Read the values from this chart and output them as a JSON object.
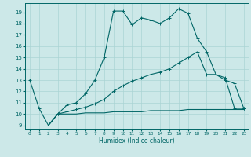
{
  "xlabel": "Humidex (Indice chaleur)",
  "bg_color": "#cce8e8",
  "grid_color": "#aad4d4",
  "line_color": "#006666",
  "xlim": [
    -0.5,
    23.5
  ],
  "ylim": [
    8.7,
    19.8
  ],
  "yticks": [
    9,
    10,
    11,
    12,
    13,
    14,
    15,
    16,
    17,
    18,
    19
  ],
  "xticks": [
    0,
    1,
    2,
    3,
    4,
    5,
    6,
    7,
    8,
    9,
    10,
    11,
    12,
    13,
    14,
    15,
    16,
    17,
    18,
    19,
    20,
    21,
    22,
    23
  ],
  "series1_x": [
    0,
    1,
    2,
    3,
    4,
    5,
    6,
    7,
    8,
    9,
    10,
    11,
    12,
    13,
    14,
    15,
    16,
    17,
    18,
    19,
    20,
    21,
    22,
    23
  ],
  "series1_y": [
    13.0,
    10.5,
    9.0,
    10.0,
    10.8,
    11.0,
    11.8,
    13.0,
    15.0,
    19.1,
    19.1,
    17.9,
    18.5,
    18.3,
    18.0,
    18.5,
    19.3,
    18.9,
    16.7,
    15.5,
    13.5,
    13.0,
    12.7,
    10.5
  ],
  "series2_x": [
    2,
    3,
    4,
    5,
    6,
    7,
    8,
    9,
    10,
    11,
    12,
    13,
    14,
    15,
    16,
    17,
    18,
    19,
    20,
    21,
    22,
    23
  ],
  "series2_y": [
    9.0,
    10.0,
    10.2,
    10.4,
    10.6,
    10.9,
    11.3,
    12.0,
    12.5,
    12.9,
    13.2,
    13.5,
    13.7,
    14.0,
    14.5,
    15.0,
    15.5,
    13.5,
    13.5,
    13.2,
    10.5,
    10.5
  ],
  "series3_x": [
    2,
    3,
    4,
    5,
    6,
    7,
    8,
    9,
    10,
    11,
    12,
    13,
    14,
    15,
    16,
    17,
    18,
    19,
    20,
    21,
    22,
    23
  ],
  "series3_y": [
    9.0,
    10.0,
    10.0,
    10.0,
    10.1,
    10.1,
    10.1,
    10.2,
    10.2,
    10.2,
    10.2,
    10.3,
    10.3,
    10.3,
    10.3,
    10.4,
    10.4,
    10.4,
    10.4,
    10.4,
    10.4,
    10.4
  ]
}
